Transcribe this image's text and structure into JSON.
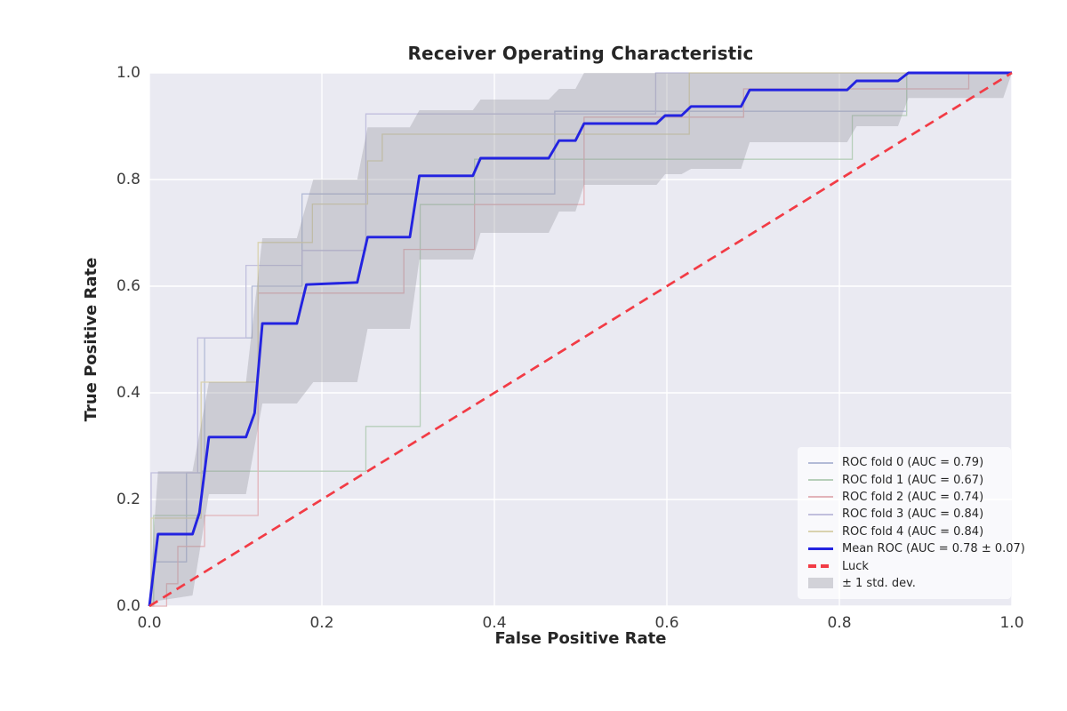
{
  "chart": {
    "title": "Receiver Operating Characteristic",
    "x_label": "False Positive Rate",
    "y_label": "True Positive Rate"
  },
  "chart_data": {
    "type": "line",
    "title": "Receiver Operating Characteristic",
    "xlabel": "False Positive Rate",
    "ylabel": "True Positive Rate",
    "xlim": [
      0.0,
      1.0
    ],
    "ylim": [
      0.0,
      1.0
    ],
    "x_ticks": [
      "0.0",
      "0.2",
      "0.4",
      "0.6",
      "0.8",
      "1.0"
    ],
    "y_ticks": [
      "0.0",
      "0.2",
      "0.4",
      "0.6",
      "0.8",
      "1.0"
    ],
    "grid": true,
    "plot_bg_color": "#eaeaf2",
    "grid_color": "#ffffff",
    "text_color": "#262626",
    "legend_position": "lower right",
    "series": [
      {
        "name": "ROC fold 0 (AUC = 0.79)",
        "auc": 0.79,
        "color": "#b3bbd7",
        "width": 1.3,
        "dash": null,
        "swatch": "thin",
        "points": [
          [
            0,
            0
          ],
          [
            0.005,
            0
          ],
          [
            0.005,
            0.083
          ],
          [
            0.043,
            0.083
          ],
          [
            0.043,
            0.25
          ],
          [
            0.064,
            0.25
          ],
          [
            0.064,
            0.503
          ],
          [
            0.119,
            0.503
          ],
          [
            0.119,
            0.6
          ],
          [
            0.177,
            0.6
          ],
          [
            0.177,
            0.773
          ],
          [
            0.47,
            0.773
          ],
          [
            0.47,
            0.928
          ],
          [
            0.878,
            0.928
          ],
          [
            0.878,
            1
          ],
          [
            1,
            1
          ]
        ]
      },
      {
        "name": "ROC fold 1 (AUC = 0.67)",
        "auc": 0.67,
        "color": "#b7cfba",
        "width": 1.3,
        "dash": null,
        "swatch": "thin",
        "points": [
          [
            0,
            0
          ],
          [
            0.005,
            0
          ],
          [
            0.005,
            0.17
          ],
          [
            0.06,
            0.17
          ],
          [
            0.06,
            0.253
          ],
          [
            0.251,
            0.253
          ],
          [
            0.251,
            0.337
          ],
          [
            0.314,
            0.337
          ],
          [
            0.314,
            0.753
          ],
          [
            0.377,
            0.753
          ],
          [
            0.377,
            0.838
          ],
          [
            0.815,
            0.838
          ],
          [
            0.815,
            0.92
          ],
          [
            0.878,
            0.92
          ],
          [
            0.878,
            1
          ],
          [
            1,
            1
          ]
        ]
      },
      {
        "name": "ROC fold 2 (AUC = 0.74)",
        "auc": 0.74,
        "color": "#e2b3b9",
        "width": 1.3,
        "dash": null,
        "swatch": "thin",
        "points": [
          [
            0,
            0
          ],
          [
            0.02,
            0
          ],
          [
            0.02,
            0.042
          ],
          [
            0.033,
            0.042
          ],
          [
            0.033,
            0.112
          ],
          [
            0.064,
            0.112
          ],
          [
            0.064,
            0.17
          ],
          [
            0.126,
            0.17
          ],
          [
            0.126,
            0.587
          ],
          [
            0.295,
            0.587
          ],
          [
            0.295,
            0.669
          ],
          [
            0.377,
            0.669
          ],
          [
            0.377,
            0.753
          ],
          [
            0.504,
            0.753
          ],
          [
            0.504,
            0.917
          ],
          [
            0.689,
            0.917
          ],
          [
            0.689,
            0.97
          ],
          [
            0.95,
            0.97
          ],
          [
            0.95,
            1
          ],
          [
            1,
            1
          ]
        ]
      },
      {
        "name": "ROC fold 3 (AUC = 0.84)",
        "auc": 0.84,
        "color": "#c1bfdd",
        "width": 1.3,
        "dash": null,
        "swatch": "thin",
        "points": [
          [
            0,
            0
          ],
          [
            0.002,
            0
          ],
          [
            0.002,
            0.25
          ],
          [
            0.056,
            0.25
          ],
          [
            0.056,
            0.503
          ],
          [
            0.112,
            0.503
          ],
          [
            0.112,
            0.639
          ],
          [
            0.177,
            0.639
          ],
          [
            0.177,
            0.667
          ],
          [
            0.251,
            0.667
          ],
          [
            0.251,
            0.923
          ],
          [
            0.587,
            0.923
          ],
          [
            0.587,
            1
          ],
          [
            1,
            1
          ]
        ]
      },
      {
        "name": "ROC fold 4 (AUC = 0.84)",
        "auc": 0.84,
        "color": "#d9d2af",
        "width": 1.3,
        "dash": null,
        "swatch": "thin",
        "points": [
          [
            0,
            0
          ],
          [
            0.002,
            0
          ],
          [
            0.002,
            0.165
          ],
          [
            0.06,
            0.165
          ],
          [
            0.06,
            0.42
          ],
          [
            0.126,
            0.42
          ],
          [
            0.126,
            0.682
          ],
          [
            0.189,
            0.682
          ],
          [
            0.189,
            0.754
          ],
          [
            0.253,
            0.754
          ],
          [
            0.253,
            0.835
          ],
          [
            0.27,
            0.835
          ],
          [
            0.27,
            0.885
          ],
          [
            0.626,
            0.885
          ],
          [
            0.626,
            1
          ],
          [
            1,
            1
          ]
        ]
      },
      {
        "name": "Mean ROC (AUC = 0.78 ± 0.07)",
        "auc": 0.78,
        "auc_std": 0.07,
        "color": "#2323e0",
        "width": 2.9,
        "dash": null,
        "swatch": "thick",
        "points": [
          [
            0,
            0
          ],
          [
            0.01,
            0.135
          ],
          [
            0.05,
            0.135
          ],
          [
            0.058,
            0.175
          ],
          [
            0.069,
            0.317
          ],
          [
            0.112,
            0.317
          ],
          [
            0.122,
            0.362
          ],
          [
            0.131,
            0.53
          ],
          [
            0.171,
            0.53
          ],
          [
            0.182,
            0.603
          ],
          [
            0.241,
            0.607
          ],
          [
            0.253,
            0.692
          ],
          [
            0.302,
            0.692
          ],
          [
            0.313,
            0.807
          ],
          [
            0.375,
            0.807
          ],
          [
            0.384,
            0.84
          ],
          [
            0.463,
            0.84
          ],
          [
            0.475,
            0.873
          ],
          [
            0.494,
            0.873
          ],
          [
            0.504,
            0.905
          ],
          [
            0.588,
            0.905
          ],
          [
            0.598,
            0.92
          ],
          [
            0.617,
            0.92
          ],
          [
            0.628,
            0.937
          ],
          [
            0.686,
            0.937
          ],
          [
            0.696,
            0.968
          ],
          [
            0.809,
            0.968
          ],
          [
            0.82,
            0.985
          ],
          [
            0.868,
            0.985
          ],
          [
            0.88,
            1
          ],
          [
            1,
            1
          ]
        ]
      },
      {
        "name": "Luck",
        "color": "#f23b45",
        "width": 2.7,
        "dash": "11 7",
        "swatch": "dashed",
        "points": [
          [
            0,
            0
          ],
          [
            1,
            1
          ]
        ]
      }
    ],
    "band": {
      "name": "± 1 std. dev.",
      "color": "#8f8f98",
      "opacity": 0.33,
      "swatch": "patch",
      "swatch_color": "#d2d2d8",
      "points": [
        [
          0.0,
          0.0,
          0.02
        ],
        [
          0.01,
          0.01,
          0.253
        ],
        [
          0.05,
          0.02,
          0.253
        ],
        [
          0.069,
          0.21,
          0.42
        ],
        [
          0.112,
          0.21,
          0.42
        ],
        [
          0.131,
          0.38,
          0.69
        ],
        [
          0.171,
          0.38,
          0.69
        ],
        [
          0.19,
          0.42,
          0.8
        ],
        [
          0.241,
          0.42,
          0.8
        ],
        [
          0.253,
          0.52,
          0.898
        ],
        [
          0.302,
          0.52,
          0.898
        ],
        [
          0.313,
          0.65,
          0.93
        ],
        [
          0.375,
          0.65,
          0.93
        ],
        [
          0.384,
          0.7,
          0.95
        ],
        [
          0.463,
          0.7,
          0.95
        ],
        [
          0.475,
          0.74,
          0.97
        ],
        [
          0.494,
          0.74,
          0.97
        ],
        [
          0.504,
          0.79,
          1.0
        ],
        [
          0.588,
          0.79,
          1.0
        ],
        [
          0.598,
          0.81,
          1.0
        ],
        [
          0.617,
          0.81,
          1.0
        ],
        [
          0.628,
          0.82,
          1.0
        ],
        [
          0.686,
          0.82,
          1.0
        ],
        [
          0.696,
          0.87,
          1.0
        ],
        [
          0.809,
          0.87,
          1.0
        ],
        [
          0.82,
          0.9,
          1.0
        ],
        [
          0.868,
          0.9,
          1.0
        ],
        [
          0.88,
          0.953,
          1.0
        ],
        [
          0.99,
          0.953,
          1.0
        ],
        [
          1.0,
          1.0,
          1.0
        ]
      ]
    }
  }
}
